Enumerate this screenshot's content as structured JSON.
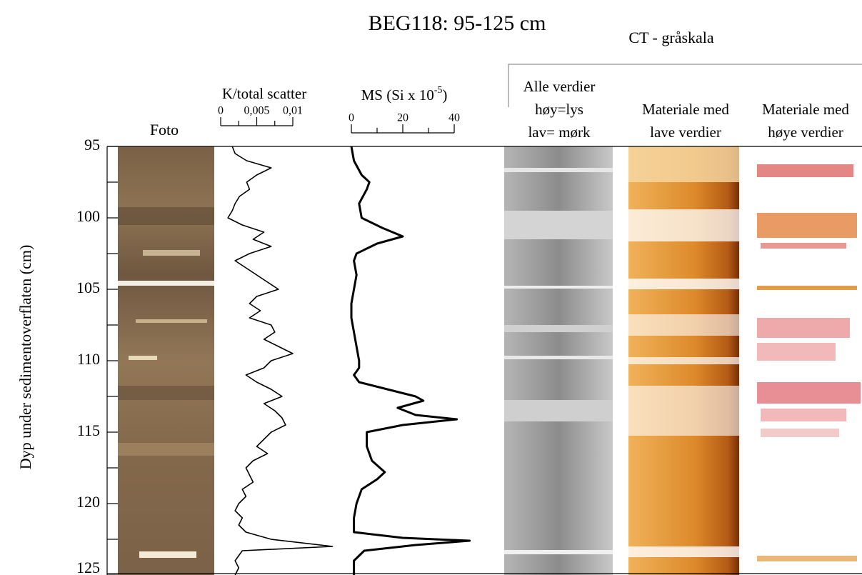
{
  "chart_data": {
    "type": "core-log",
    "title": "BEG118: 95-125 cm",
    "ct_title": "CT - gråskala",
    "y_label": "Dyp under sedimentoverflaten (cm)",
    "ylim": [
      95,
      125
    ],
    "yticks": [
      95,
      100,
      105,
      110,
      115,
      120,
      125
    ],
    "yminorticks": [
      97.5,
      102.5,
      107.5,
      112.5,
      117.5,
      122.5
    ],
    "panels": [
      {
        "lines": [
          "Foto"
        ]
      },
      {
        "lines": [
          "Alle verdier",
          "høy=lys",
          "lav= mørk"
        ]
      },
      {
        "lines": [
          "Materiale med",
          "lave verdier"
        ]
      },
      {
        "lines": [
          "Materiale med",
          "høye verdier"
        ]
      }
    ],
    "series": [
      {
        "name": "K/total scatter",
        "color": "#000000",
        "xlim": [
          0,
          0.01
        ],
        "xticks": [
          0,
          {
            "value": 0.005,
            "label": "0,005"
          },
          {
            "value": 0.01,
            "label": "0,01"
          }
        ],
        "xminorticks": [
          0.0025,
          0.0075
        ],
        "x": [
          95,
          95.5,
          96,
          96.5,
          97,
          97.5,
          98,
          98.5,
          99,
          99.5,
          100,
          100.5,
          101,
          101.5,
          102,
          102.5,
          103,
          103.5,
          104,
          104.5,
          105,
          105.5,
          106,
          106.5,
          107,
          107.5,
          108,
          108.5,
          109,
          109.5,
          110,
          110.5,
          111,
          111.5,
          112,
          112.5,
          113,
          113.5,
          114,
          114.5,
          115,
          115.5,
          116,
          116.5,
          117,
          117.5,
          118,
          118.5,
          119,
          119.5,
          120,
          120.5,
          121,
          121.5,
          122,
          122.5,
          123,
          123.3,
          124,
          124.5,
          125
        ],
        "values": [
          0.0016,
          0.002,
          0.0036,
          0.007,
          0.005,
          0.0036,
          0.004,
          0.0026,
          0.002,
          0.0016,
          0.001,
          0.003,
          0.006,
          0.0045,
          0.007,
          0.004,
          0.002,
          0.0035,
          0.005,
          0.0065,
          0.008,
          0.005,
          0.004,
          0.0055,
          0.004,
          0.007,
          0.0075,
          0.006,
          0.008,
          0.01,
          0.007,
          0.006,
          0.0035,
          0.005,
          0.007,
          0.0085,
          0.006,
          0.0075,
          0.0085,
          0.009,
          0.007,
          0.006,
          0.005,
          0.0065,
          0.0045,
          0.0035,
          0.004,
          0.0045,
          0.003,
          0.0035,
          0.0025,
          0.002,
          0.003,
          0.0025,
          0.0035,
          0.007,
          0.0155,
          0.003,
          0.002,
          0.0025,
          0.002
        ]
      },
      {
        "label_parts": [
          "MS (Si x 10",
          "-5",
          ")"
        ],
        "color": "#000000",
        "xlim": [
          0,
          40
        ],
        "xticks": [
          0,
          20,
          40
        ],
        "xminorticks": [
          10,
          30
        ],
        "x": [
          95,
          96,
          97,
          97.5,
          98,
          99,
          100,
          100.7,
          101.3,
          101.8,
          102.5,
          103,
          104,
          105,
          106,
          107,
          108,
          109,
          110,
          110.5,
          111,
          111.5,
          112,
          112.5,
          112.8,
          113.3,
          113.8,
          114.1,
          114.5,
          115,
          116,
          117,
          117.8,
          118.3,
          119,
          119.5,
          120,
          121,
          122,
          122.4,
          122.6,
          122.9,
          123.3,
          124,
          125
        ],
        "values": [
          0,
          1,
          4,
          7,
          6,
          3,
          4,
          12,
          20,
          10,
          2,
          1,
          2,
          1,
          0,
          0,
          1,
          2,
          3,
          3,
          1,
          3,
          14,
          25,
          28,
          18,
          25,
          41,
          20,
          6,
          6,
          8,
          13,
          10,
          4,
          3,
          2,
          1,
          1,
          20,
          46,
          25,
          5,
          1,
          1
        ]
      }
    ]
  }
}
